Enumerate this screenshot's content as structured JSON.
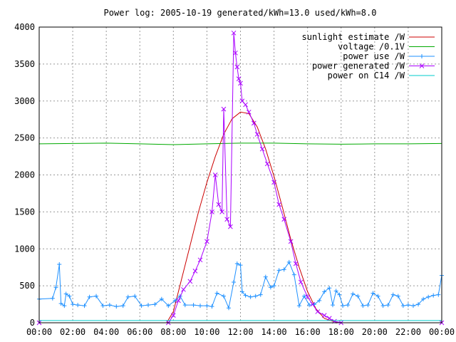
{
  "chart_data": {
    "type": "line",
    "title": "Power log: 2005-10-19 generated/kWh=13.0 used/kWh=8.0",
    "xlabel": "",
    "ylabel": "",
    "xlim": [
      0,
      24
    ],
    "ylim": [
      0,
      4000
    ],
    "grid": true,
    "legend_position": "top-right",
    "x_ticks": [
      "00:00",
      "02:00",
      "04:00",
      "06:00",
      "08:00",
      "10:00",
      "12:00",
      "14:00",
      "16:00",
      "18:00",
      "20:00",
      "22:00",
      "00:00"
    ],
    "y_ticks": [
      "0",
      "500",
      "1000",
      "1500",
      "2000",
      "2500",
      "3000",
      "3500",
      "4000"
    ],
    "series": [
      {
        "name": "sunlight estimate /W",
        "color": "#cc0000",
        "style": "line",
        "x": [
          0,
          7.6,
          8.0,
          8.5,
          9.0,
          9.5,
          10.0,
          10.5,
          11.0,
          11.5,
          12.0,
          12.5,
          13.0,
          13.5,
          14.0,
          14.5,
          15.0,
          15.5,
          16.0,
          16.5,
          17.0,
          17.5,
          18.0,
          24
        ],
        "y": [
          0,
          0,
          150,
          600,
          1050,
          1500,
          1900,
          2250,
          2550,
          2760,
          2850,
          2830,
          2650,
          2350,
          1980,
          1560,
          1130,
          750,
          420,
          190,
          60,
          20,
          0,
          0
        ]
      },
      {
        "name": "voltage /0.1V",
        "color": "#00aa00",
        "style": "line",
        "x": [
          0,
          2,
          4,
          6,
          8,
          10,
          12,
          14,
          16,
          18,
          20,
          22,
          24
        ],
        "y": [
          2420,
          2425,
          2430,
          2420,
          2410,
          2420,
          2430,
          2430,
          2420,
          2415,
          2420,
          2420,
          2425
        ]
      },
      {
        "name": "power use /W",
        "color": "#1e90ff",
        "style": "linepoints",
        "x": [
          0.0,
          0.8,
          1.0,
          1.2,
          1.3,
          1.5,
          1.6,
          1.8,
          2.0,
          2.3,
          2.7,
          3.0,
          3.4,
          3.8,
          4.2,
          4.6,
          5.0,
          5.3,
          5.7,
          6.1,
          6.5,
          6.9,
          7.3,
          7.7,
          8.1,
          8.4,
          8.7,
          9.2,
          9.6,
          10.0,
          10.3,
          10.6,
          11.0,
          11.3,
          11.6,
          11.8,
          12.0,
          12.1,
          12.3,
          12.6,
          12.9,
          13.2,
          13.5,
          13.8,
          14.0,
          14.3,
          14.6,
          14.9,
          15.2,
          15.5,
          15.8,
          16.1,
          16.4,
          16.7,
          17.0,
          17.3,
          17.5,
          17.7,
          17.9,
          18.1,
          18.4,
          18.7,
          19.0,
          19.3,
          19.6,
          19.9,
          20.2,
          20.5,
          20.8,
          21.1,
          21.4,
          21.7,
          22.0,
          22.3,
          22.6,
          22.9,
          23.2,
          23.5,
          23.8,
          24.0
        ],
        "y": [
          320,
          330,
          480,
          790,
          260,
          230,
          390,
          360,
          250,
          240,
          230,
          350,
          360,
          230,
          240,
          220,
          230,
          350,
          360,
          230,
          240,
          250,
          320,
          230,
          300,
          360,
          240,
          240,
          230,
          230,
          220,
          400,
          360,
          200,
          550,
          800,
          780,
          420,
          370,
          350,
          360,
          380,
          620,
          480,
          500,
          710,
          720,
          820,
          650,
          230,
          360,
          240,
          250,
          300,
          420,
          470,
          240,
          430,
          380,
          230,
          240,
          390,
          360,
          230,
          240,
          400,
          360,
          230,
          240,
          380,
          360,
          230,
          240,
          230,
          250,
          320,
          350,
          370,
          380,
          640
        ]
      },
      {
        "name": "power generated /W",
        "color": "#aa00ff",
        "style": "linepoints",
        "x": [
          0,
          7.7,
          8.0,
          8.3,
          8.6,
          9.0,
          9.3,
          9.6,
          10.0,
          10.3,
          10.5,
          10.7,
          10.9,
          11.0,
          11.2,
          11.4,
          11.6,
          11.7,
          11.8,
          11.9,
          12.0,
          12.1,
          12.3,
          12.5,
          12.8,
          13.0,
          13.3,
          13.6,
          14.0,
          14.3,
          14.6,
          15.0,
          15.3,
          15.6,
          16.0,
          16.3,
          16.6,
          17.0,
          17.3,
          17.6,
          18.0,
          24
        ],
        "y": [
          0,
          0,
          100,
          300,
          450,
          560,
          700,
          850,
          1100,
          1500,
          2000,
          1600,
          1500,
          2890,
          1400,
          1300,
          3920,
          3650,
          3460,
          3300,
          3240,
          3000,
          2950,
          2850,
          2700,
          2550,
          2350,
          2150,
          1900,
          1600,
          1400,
          1100,
          800,
          550,
          350,
          250,
          150,
          100,
          60,
          20,
          0,
          0
        ]
      },
      {
        "name": "power on C14 /W",
        "color": "#00cccc",
        "style": "line",
        "x": [
          0,
          24
        ],
        "y": [
          30,
          30
        ]
      }
    ]
  }
}
